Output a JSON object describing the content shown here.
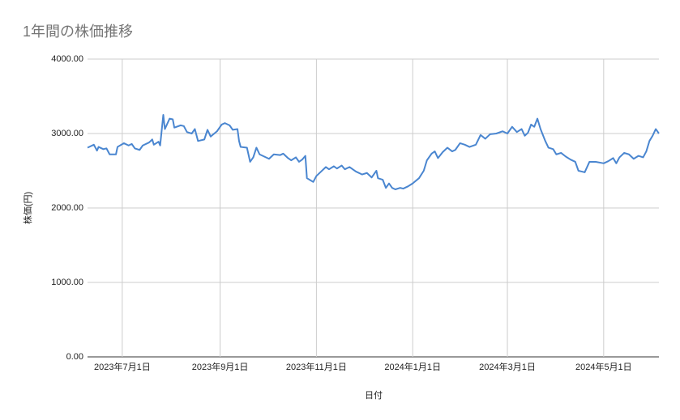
{
  "chart_data": {
    "type": "line",
    "title": "1年間の株価推移",
    "x_label": "日付",
    "y_label": "株価(円)",
    "color": "#4a86d0",
    "grid": true,
    "xlim": [
      "2023-06-09",
      "2024-06-05"
    ],
    "xticks": [
      {
        "value": "2023-07-01",
        "label": "2023年7月1日"
      },
      {
        "value": "2023-09-01",
        "label": "2023年9月1日"
      },
      {
        "value": "2023-11-01",
        "label": "2023年11月1日"
      },
      {
        "value": "2024-01-01",
        "label": "2024年1月1日"
      },
      {
        "value": "2024-03-01",
        "label": "2024年3月1日"
      },
      {
        "value": "2024-05-01",
        "label": "2024年5月1日"
      }
    ],
    "ylim": [
      0,
      4000
    ],
    "yticks": [
      {
        "value": 0,
        "label": "0.00"
      },
      {
        "value": 1000,
        "label": "1000.00"
      },
      {
        "value": 2000,
        "label": "2000.00"
      },
      {
        "value": 3000,
        "label": "3000.00"
      },
      {
        "value": 4000,
        "label": "4000.00"
      }
    ],
    "x": [
      "2023-06-09",
      "2023-06-13",
      "2023-06-15",
      "2023-06-16",
      "2023-06-19",
      "2023-06-21",
      "2023-06-23",
      "2023-06-27",
      "2023-06-28",
      "2023-07-02",
      "2023-07-05",
      "2023-07-07",
      "2023-07-09",
      "2023-07-12",
      "2023-07-14",
      "2023-07-18",
      "2023-07-20",
      "2023-07-21",
      "2023-07-24",
      "2023-07-25",
      "2023-07-27",
      "2023-07-28",
      "2023-07-31",
      "2023-08-02",
      "2023-08-03",
      "2023-08-07",
      "2023-08-09",
      "2023-08-11",
      "2023-08-14",
      "2023-08-16",
      "2023-08-18",
      "2023-08-22",
      "2023-08-24",
      "2023-08-26",
      "2023-08-30",
      "2023-09-02",
      "2023-09-04",
      "2023-09-07",
      "2023-09-09",
      "2023-09-12",
      "2023-09-13",
      "2023-09-14",
      "2023-09-18",
      "2023-09-20",
      "2023-09-22",
      "2023-09-24",
      "2023-09-26",
      "2023-09-29",
      "2023-10-02",
      "2023-10-05",
      "2023-10-09",
      "2023-10-11",
      "2023-10-14",
      "2023-10-16",
      "2023-10-19",
      "2023-10-21",
      "2023-10-23",
      "2023-10-25",
      "2023-10-26",
      "2023-10-30",
      "2023-11-01",
      "2023-11-04",
      "2023-11-07",
      "2023-11-09",
      "2023-11-12",
      "2023-11-14",
      "2023-11-17",
      "2023-11-19",
      "2023-11-22",
      "2023-11-26",
      "2023-11-30",
      "2023-12-03",
      "2023-12-06",
      "2023-12-09",
      "2023-12-10",
      "2023-12-13",
      "2023-12-15",
      "2023-12-17",
      "2023-12-19",
      "2023-12-21",
      "2023-12-24",
      "2023-12-26",
      "2023-12-29",
      "2024-01-01",
      "2024-01-05",
      "2024-01-08",
      "2024-01-10",
      "2024-01-13",
      "2024-01-15",
      "2024-01-17",
      "2024-01-20",
      "2024-01-23",
      "2024-01-26",
      "2024-01-28",
      "2024-01-31",
      "2024-02-03",
      "2024-02-06",
      "2024-02-10",
      "2024-02-13",
      "2024-02-16",
      "2024-02-19",
      "2024-02-23",
      "2024-02-27",
      "2024-03-01",
      "2024-03-04",
      "2024-03-07",
      "2024-03-10",
      "2024-03-12",
      "2024-03-14",
      "2024-03-16",
      "2024-03-18",
      "2024-03-20",
      "2024-03-22",
      "2024-03-25",
      "2024-03-27",
      "2024-03-30",
      "2024-04-01",
      "2024-04-04",
      "2024-04-07",
      "2024-04-10",
      "2024-04-13",
      "2024-04-15",
      "2024-04-17",
      "2024-04-19",
      "2024-04-22",
      "2024-04-26",
      "2024-05-01",
      "2024-05-04",
      "2024-05-07",
      "2024-05-09",
      "2024-05-11",
      "2024-05-14",
      "2024-05-17",
      "2024-05-20",
      "2024-05-23",
      "2024-05-26",
      "2024-05-28",
      "2024-05-30",
      "2024-06-01",
      "2024-06-03",
      "2024-06-05"
    ],
    "values": [
      2810,
      2850,
      2770,
      2820,
      2790,
      2800,
      2720,
      2720,
      2820,
      2870,
      2840,
      2860,
      2800,
      2780,
      2840,
      2880,
      2920,
      2850,
      2890,
      2840,
      3250,
      3060,
      3200,
      3190,
      3080,
      3110,
      3100,
      3020,
      3000,
      3060,
      2900,
      2920,
      3050,
      2960,
      3030,
      3120,
      3140,
      3110,
      3050,
      3060,
      2900,
      2820,
      2810,
      2620,
      2680,
      2810,
      2720,
      2690,
      2660,
      2720,
      2710,
      2730,
      2670,
      2640,
      2680,
      2620,
      2650,
      2700,
      2400,
      2350,
      2430,
      2490,
      2550,
      2520,
      2560,
      2530,
      2570,
      2520,
      2550,
      2490,
      2450,
      2470,
      2410,
      2500,
      2400,
      2380,
      2270,
      2330,
      2270,
      2250,
      2270,
      2260,
      2290,
      2330,
      2400,
      2500,
      2640,
      2730,
      2760,
      2670,
      2750,
      2810,
      2760,
      2780,
      2870,
      2850,
      2820,
      2850,
      2980,
      2930,
      2990,
      3000,
      3030,
      3000,
      3090,
      3020,
      3060,
      2970,
      3010,
      3120,
      3090,
      3200,
      3060,
      2900,
      2810,
      2790,
      2720,
      2740,
      2690,
      2650,
      2620,
      2500,
      2490,
      2480,
      2620,
      2620,
      2600,
      2630,
      2670,
      2600,
      2680,
      2740,
      2720,
      2660,
      2700,
      2680,
      2760,
      2900,
      2970,
      3060,
      3000
    ]
  }
}
